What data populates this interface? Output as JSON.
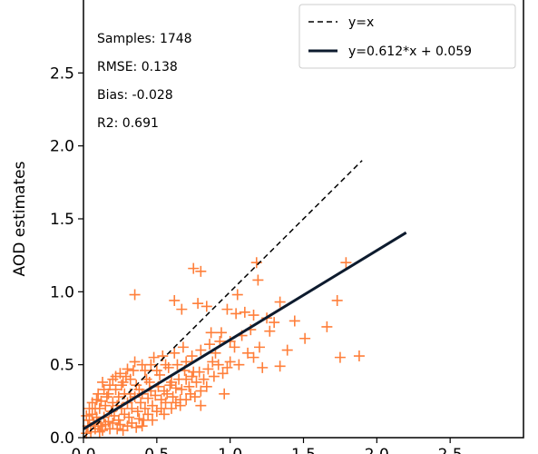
{
  "chart_data": {
    "type": "scatter",
    "title": "",
    "xlabel": "",
    "ylabel": "AOD estimates",
    "xlim": [
      0.0,
      3.0
    ],
    "ylim": [
      0.0,
      3.0
    ],
    "xticks": [
      "0.0",
      "0.5",
      "1.0",
      "1.5",
      "2.0",
      "2.5"
    ],
    "yticks": [
      "0.0",
      "0.5",
      "1.0",
      "1.5",
      "2.0",
      "2.5"
    ],
    "grid": false,
    "stats": {
      "samples": "Samples: 1748",
      "rmse": "RMSE: 0.138",
      "bias": "Bias: -0.028",
      "r2": "R2: 0.691"
    },
    "legend": {
      "placement": "top-right",
      "identity_label": "y=x",
      "fit_label": "y=0.612*x + 0.059"
    },
    "identity_line": {
      "x": [
        0.0,
        1.9
      ],
      "y": [
        0.0,
        1.9
      ]
    },
    "fit_line": {
      "slope": 0.612,
      "intercept": 0.059,
      "x": [
        0.0,
        2.2
      ]
    },
    "marker_color": "#ff7f3a",
    "line_color": "#0d1b2e",
    "series": [
      {
        "marker": "plus",
        "points": [
          [
            0.75,
            1.16
          ],
          [
            0.8,
            1.14
          ],
          [
            1.18,
            1.2
          ],
          [
            1.19,
            1.08
          ],
          [
            1.79,
            1.2
          ],
          [
            1.05,
            0.98
          ],
          [
            0.35,
            0.98
          ],
          [
            1.34,
            0.93
          ],
          [
            1.73,
            0.94
          ],
          [
            0.62,
            0.94
          ],
          [
            0.78,
            0.92
          ],
          [
            0.84,
            0.9
          ],
          [
            0.67,
            0.88
          ],
          [
            0.98,
            0.88
          ],
          [
            1.04,
            0.85
          ],
          [
            1.1,
            0.86
          ],
          [
            1.16,
            0.84
          ],
          [
            1.25,
            0.82
          ],
          [
            1.44,
            0.8
          ],
          [
            1.66,
            0.76
          ],
          [
            1.3,
            0.79
          ],
          [
            1.27,
            0.73
          ],
          [
            1.51,
            0.68
          ],
          [
            1.39,
            0.6
          ],
          [
            1.75,
            0.55
          ],
          [
            1.88,
            0.56
          ],
          [
            1.03,
            0.62
          ],
          [
            0.87,
            0.72
          ],
          [
            0.93,
            0.66
          ],
          [
            1.16,
            0.55
          ],
          [
            1.22,
            0.48
          ],
          [
            1.34,
            0.49
          ],
          [
            0.88,
            0.52
          ],
          [
            0.98,
            0.48
          ],
          [
            0.75,
            0.45
          ],
          [
            0.96,
            0.3
          ],
          [
            0.8,
            0.22
          ],
          [
            0.66,
            0.26
          ],
          [
            0.4,
            0.08
          ],
          [
            0.55,
            0.16
          ],
          [
            0.52,
            0.43
          ],
          [
            0.6,
            0.38
          ],
          [
            0.68,
            0.62
          ],
          [
            0.7,
            0.52
          ],
          [
            0.62,
            0.58
          ],
          [
            0.56,
            0.5
          ],
          [
            0.48,
            0.55
          ],
          [
            0.45,
            0.38
          ],
          [
            0.42,
            0.46
          ],
          [
            0.38,
            0.33
          ],
          [
            0.35,
            0.52
          ],
          [
            0.32,
            0.4
          ],
          [
            0.28,
            0.3
          ],
          [
            0.3,
            0.47
          ],
          [
            0.27,
            0.38
          ],
          [
            0.25,
            0.44
          ],
          [
            0.22,
            0.33
          ],
          [
            0.2,
            0.4
          ],
          [
            0.18,
            0.36
          ],
          [
            0.16,
            0.28
          ],
          [
            0.14,
            0.33
          ],
          [
            0.12,
            0.25
          ],
          [
            0.1,
            0.3
          ],
          [
            0.08,
            0.2
          ],
          [
            0.06,
            0.16
          ],
          [
            0.04,
            0.12
          ],
          [
            0.03,
            0.08
          ],
          [
            0.02,
            0.03
          ],
          [
            0.05,
            0.04
          ],
          [
            0.08,
            0.06
          ],
          [
            0.1,
            0.1
          ],
          [
            0.12,
            0.08
          ],
          [
            0.14,
            0.14
          ],
          [
            0.17,
            0.11
          ],
          [
            0.19,
            0.18
          ],
          [
            0.21,
            0.15
          ],
          [
            0.23,
            0.22
          ],
          [
            0.24,
            0.12
          ],
          [
            0.26,
            0.2
          ],
          [
            0.28,
            0.16
          ],
          [
            0.3,
            0.24
          ],
          [
            0.31,
            0.14
          ],
          [
            0.33,
            0.2
          ],
          [
            0.35,
            0.28
          ],
          [
            0.37,
            0.18
          ],
          [
            0.39,
            0.24
          ],
          [
            0.4,
            0.3
          ],
          [
            0.42,
            0.2
          ],
          [
            0.44,
            0.27
          ],
          [
            0.46,
            0.32
          ],
          [
            0.47,
            0.22
          ],
          [
            0.49,
            0.29
          ],
          [
            0.51,
            0.35
          ],
          [
            0.53,
            0.26
          ],
          [
            0.55,
            0.32
          ],
          [
            0.57,
            0.3
          ],
          [
            0.59,
            0.36
          ],
          [
            0.61,
            0.28
          ],
          [
            0.63,
            0.34
          ],
          [
            0.65,
            0.4
          ],
          [
            0.67,
            0.33
          ],
          [
            0.7,
            0.4
          ],
          [
            0.72,
            0.35
          ],
          [
            0.74,
            0.42
          ],
          [
            0.77,
            0.38
          ],
          [
            0.79,
            0.45
          ],
          [
            0.82,
            0.4
          ],
          [
            0.85,
            0.47
          ],
          [
            0.89,
            0.42
          ],
          [
            0.92,
            0.5
          ],
          [
            0.95,
            0.44
          ],
          [
            1.0,
            0.52
          ],
          [
            1.06,
            0.5
          ],
          [
            1.12,
            0.58
          ],
          [
            1.2,
            0.62
          ],
          [
            0.06,
            0.24
          ],
          [
            0.09,
            0.26
          ],
          [
            0.11,
            0.2
          ],
          [
            0.13,
            0.38
          ],
          [
            0.15,
            0.22
          ],
          [
            0.17,
            0.3
          ],
          [
            0.2,
            0.24
          ],
          [
            0.22,
            0.42
          ],
          [
            0.24,
            0.28
          ],
          [
            0.26,
            0.36
          ],
          [
            0.29,
            0.42
          ],
          [
            0.32,
            0.3
          ],
          [
            0.34,
            0.46
          ],
          [
            0.36,
            0.36
          ],
          [
            0.4,
            0.5
          ],
          [
            0.43,
            0.4
          ],
          [
            0.46,
            0.5
          ],
          [
            0.5,
            0.46
          ],
          [
            0.54,
            0.56
          ],
          [
            0.58,
            0.48
          ],
          [
            0.64,
            0.5
          ],
          [
            0.69,
            0.46
          ],
          [
            0.74,
            0.56
          ],
          [
            0.8,
            0.6
          ],
          [
            0.86,
            0.64
          ],
          [
            0.9,
            0.58
          ],
          [
            0.94,
            0.72
          ],
          [
            1.0,
            0.66
          ],
          [
            1.08,
            0.7
          ],
          [
            1.14,
            0.74
          ],
          [
            0.02,
            0.15
          ],
          [
            0.04,
            0.2
          ],
          [
            0.07,
            0.1
          ],
          [
            0.09,
            0.14
          ],
          [
            0.11,
            0.04
          ],
          [
            0.13,
            0.05
          ],
          [
            0.15,
            0.09
          ],
          [
            0.18,
            0.06
          ],
          [
            0.2,
            0.1
          ],
          [
            0.23,
            0.06
          ],
          [
            0.25,
            0.09
          ],
          [
            0.27,
            0.05
          ],
          [
            0.3,
            0.08
          ],
          [
            0.33,
            0.1
          ],
          [
            0.36,
            0.07
          ],
          [
            0.38,
            0.13
          ],
          [
            0.41,
            0.12
          ],
          [
            0.44,
            0.16
          ],
          [
            0.47,
            0.12
          ],
          [
            0.5,
            0.18
          ],
          [
            0.53,
            0.2
          ],
          [
            0.56,
            0.24
          ],
          [
            0.6,
            0.2
          ],
          [
            0.63,
            0.24
          ],
          [
            0.66,
            0.22
          ],
          [
            0.7,
            0.26
          ],
          [
            0.73,
            0.3
          ],
          [
            0.76,
            0.28
          ],
          [
            0.8,
            0.32
          ],
          [
            0.84,
            0.35
          ]
        ]
      }
    ]
  }
}
